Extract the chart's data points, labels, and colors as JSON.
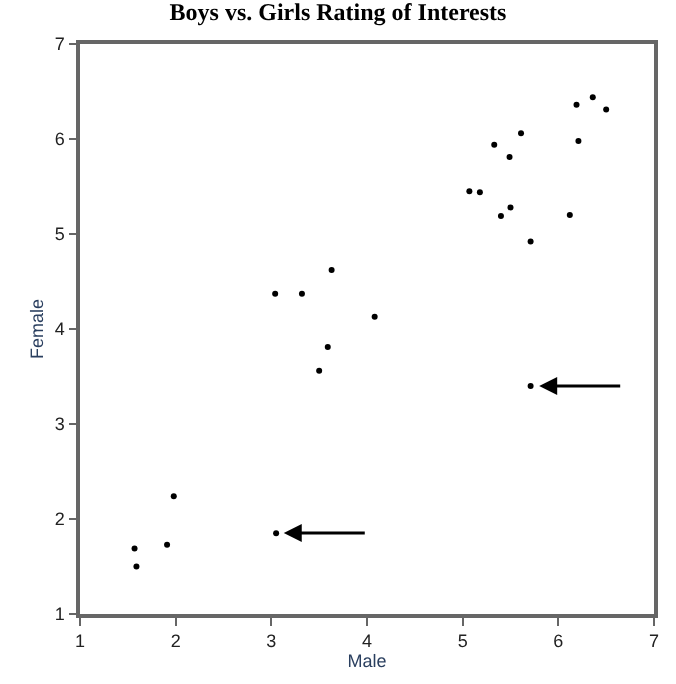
{
  "chart_data": {
    "type": "scatter",
    "title": "Boys vs. Girls Rating of Interests",
    "xlabel": "Male",
    "ylabel": "Female",
    "x": [
      3.04,
      3.32,
      3.63,
      4.08,
      5.07,
      5.18,
      5.33,
      5.49,
      5.61,
      5.4,
      5.5,
      5.71,
      6.12,
      6.19,
      6.36,
      6.5,
      6.21,
      3.59,
      3.5,
      5.71,
      1.57,
      1.59,
      1.91,
      1.98,
      3.05
    ],
    "series": [
      {
        "color": "#000000",
        "values": [
          4.37,
          4.37,
          4.62,
          4.13,
          5.45,
          5.44,
          5.94,
          5.81,
          6.06,
          5.19,
          5.28,
          4.92,
          5.2,
          6.36,
          6.44,
          6.31,
          5.98,
          3.81,
          3.56,
          3.4,
          1.69,
          1.5,
          1.73,
          2.24,
          1.85
        ]
      }
    ],
    "xlim": [
      1,
      7
    ],
    "ylim": [
      1,
      7
    ],
    "xticks": [
      1,
      2,
      3,
      4,
      5,
      6,
      7
    ],
    "yticks": [
      1,
      2,
      3,
      4,
      5,
      6,
      7
    ],
    "legend": false
  }
}
